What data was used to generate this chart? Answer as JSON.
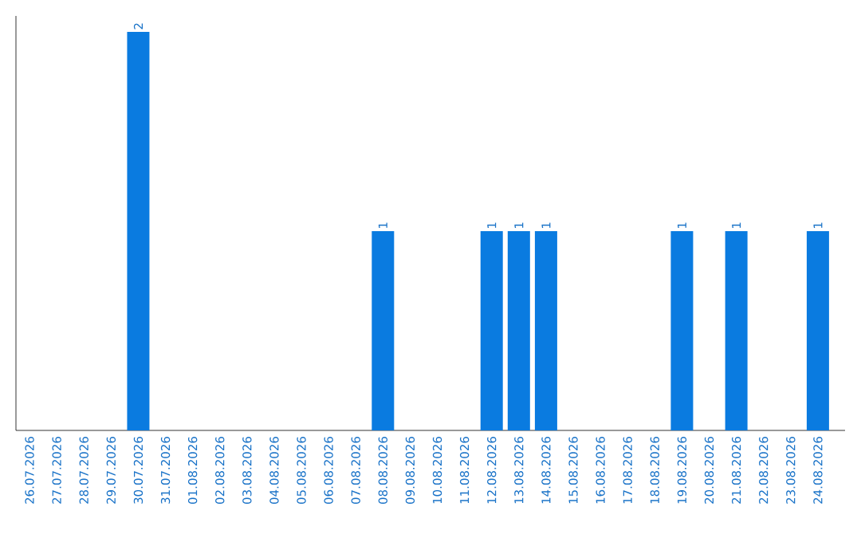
{
  "chart_data": {
    "type": "bar",
    "categories": [
      "26.07.2026",
      "27.07.2026",
      "28.07.2026",
      "29.07.2026",
      "30.07.2026",
      "31.07.2026",
      "01.08.2026",
      "02.08.2026",
      "03.08.2026",
      "04.08.2026",
      "05.08.2026",
      "06.08.2026",
      "07.08.2026",
      "08.08.2026",
      "09.08.2026",
      "10.08.2026",
      "11.08.2026",
      "12.08.2026",
      "13.08.2026",
      "14.08.2026",
      "15.08.2026",
      "16.08.2026",
      "17.08.2026",
      "18.08.2026",
      "19.08.2026",
      "20.08.2026",
      "21.08.2026",
      "22.08.2026",
      "23.08.2026",
      "24.08.2026"
    ],
    "values": [
      0,
      0,
      0,
      0,
      2,
      0,
      0,
      0,
      0,
      0,
      0,
      0,
      0,
      1,
      0,
      0,
      0,
      1,
      1,
      1,
      0,
      0,
      0,
      0,
      1,
      0,
      1,
      0,
      0,
      1
    ],
    "value_labels": [
      null,
      null,
      null,
      null,
      "2",
      null,
      null,
      null,
      null,
      null,
      null,
      null,
      null,
      "1",
      null,
      null,
      null,
      "1",
      "1",
      "1",
      null,
      null,
      null,
      null,
      "1",
      null,
      "1",
      null,
      null,
      "1"
    ],
    "color": "#0a7be0",
    "tick_labels": "x"
  }
}
